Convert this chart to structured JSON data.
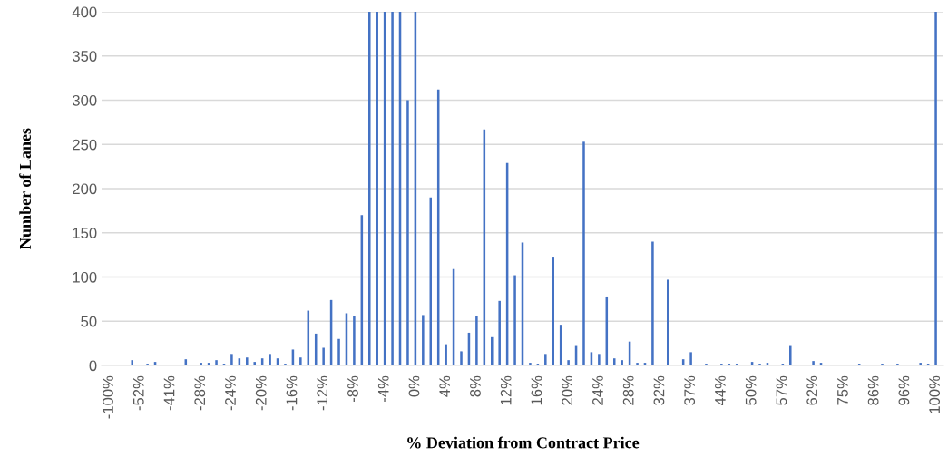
{
  "chart_data": {
    "type": "bar",
    "xlabel": "% Deviation from Contract Price",
    "ylabel": "Number of Lanes",
    "categories": [
      "-100%",
      null,
      null,
      null,
      "-52%",
      null,
      null,
      null,
      "-41%",
      null,
      null,
      null,
      "-28%",
      null,
      null,
      null,
      "-24%",
      null,
      null,
      null,
      "-20%",
      null,
      null,
      null,
      "-16%",
      null,
      null,
      null,
      "-12%",
      null,
      null,
      null,
      "-8%",
      null,
      null,
      null,
      "-4%",
      null,
      null,
      null,
      "0%",
      null,
      null,
      null,
      "4%",
      null,
      null,
      null,
      "8%",
      null,
      null,
      null,
      "12%",
      null,
      null,
      null,
      "16%",
      null,
      null,
      null,
      "20%",
      null,
      null,
      null,
      "24%",
      null,
      null,
      null,
      "28%",
      null,
      null,
      null,
      "32%",
      null,
      null,
      null,
      "37%",
      null,
      null,
      null,
      "44%",
      null,
      null,
      null,
      "50%",
      null,
      null,
      null,
      "57%",
      null,
      null,
      null,
      "62%",
      null,
      null,
      null,
      "75%",
      null,
      null,
      null,
      "86%",
      null,
      null,
      null,
      "96%",
      null,
      null,
      null,
      "100%"
    ],
    "values": [
      0,
      0,
      0,
      6,
      0,
      2,
      4,
      0,
      0,
      0,
      7,
      0,
      3,
      3,
      6,
      2,
      13,
      8,
      9,
      4,
      8,
      13,
      8,
      2,
      18,
      9,
      62,
      36,
      20,
      74,
      30,
      59,
      56,
      170,
      400,
      400,
      400,
      400,
      400,
      300,
      400,
      57,
      190,
      312,
      24,
      109,
      16,
      37,
      56,
      267,
      32,
      73,
      229,
      102,
      139,
      3,
      2,
      13,
      123,
      46,
      6,
      22,
      253,
      15,
      13,
      78,
      8,
      6,
      27,
      3,
      3,
      140,
      0,
      97,
      0,
      7,
      15,
      0,
      2,
      0,
      2,
      2,
      2,
      0,
      4,
      2,
      3,
      0,
      2,
      22,
      0,
      0,
      5,
      3,
      0,
      0,
      0,
      0,
      2,
      0,
      0,
      2,
      0,
      2,
      0,
      0,
      3,
      2,
      400
    ],
    "color": "#4472c4",
    "ylim": [
      0,
      400
    ],
    "yticks": [
      0,
      50,
      100,
      150,
      200,
      250,
      300,
      350,
      400
    ],
    "grid": "y"
  }
}
